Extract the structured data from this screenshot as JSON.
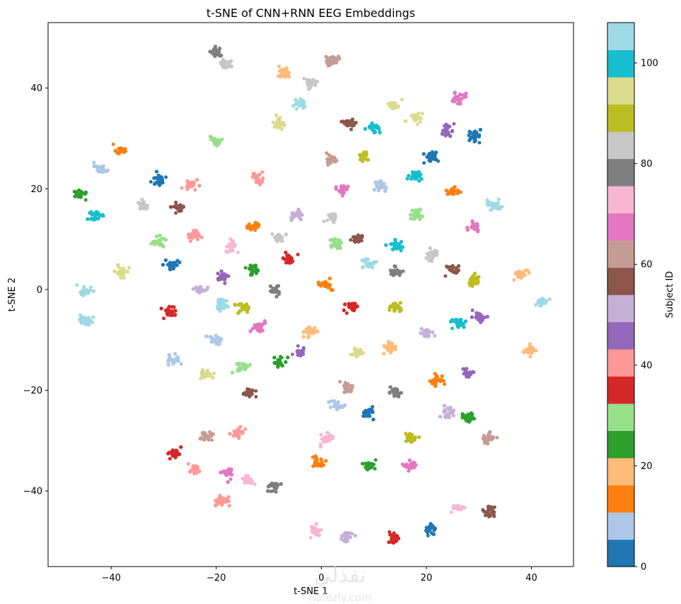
{
  "chart_data": {
    "type": "scatter",
    "title": "t-SNE of CNN+RNN EEG Embeddings",
    "xlabel": "t-SNE 1",
    "ylabel": "t-SNE 2",
    "xlim": [
      -52,
      48
    ],
    "ylim": [
      -55,
      53
    ],
    "x_ticks": [
      -40,
      -20,
      0,
      20,
      40
    ],
    "y_ticks": [
      -40,
      -20,
      0,
      20,
      40
    ],
    "grid": false,
    "colorbar": {
      "label": "Subject ID",
      "colormap": "tab20",
      "range": [
        0,
        108
      ],
      "ticks": [
        0,
        20,
        40,
        60,
        80,
        100
      ],
      "colors": [
        "#1f77b4",
        "#aec7e8",
        "#ff7f0e",
        "#ffbb78",
        "#2ca02c",
        "#98df8a",
        "#d62728",
        "#ff9896",
        "#9467bd",
        "#c5b0d5",
        "#8c564b",
        "#c49c94",
        "#e377c2",
        "#f7b6d2",
        "#7f7f7f",
        "#c7c7c7",
        "#bcbd22",
        "#dbdb8d",
        "#17becf",
        "#9edae5"
      ]
    },
    "clusters": [
      {
        "x": -20,
        "y": 47,
        "color": "#7f7f7f"
      },
      {
        "x": -18,
        "y": 45,
        "color": "#c7c7c7"
      },
      {
        "x": -7,
        "y": 43,
        "color": "#ffbb78"
      },
      {
        "x": -2,
        "y": 41,
        "color": "#c7c7c7"
      },
      {
        "x": 2,
        "y": 45.5,
        "color": "#c49c94"
      },
      {
        "x": -4,
        "y": 37,
        "color": "#9edae5"
      },
      {
        "x": 14,
        "y": 36.5,
        "color": "#dbdb8d"
      },
      {
        "x": 18,
        "y": 34,
        "color": "#dbdb8d"
      },
      {
        "x": 26,
        "y": 38,
        "color": "#e377c2"
      },
      {
        "x": 5,
        "y": 33,
        "color": "#8c564b"
      },
      {
        "x": 10,
        "y": 32,
        "color": "#17becf"
      },
      {
        "x": -8,
        "y": 33,
        "color": "#dbdb8d"
      },
      {
        "x": 24,
        "y": 31.5,
        "color": "#9467bd"
      },
      {
        "x": 29,
        "y": 30.5,
        "color": "#1f77b4"
      },
      {
        "x": -20,
        "y": 29.5,
        "color": "#98df8a"
      },
      {
        "x": -38,
        "y": 27.5,
        "color": "#ff7f0e"
      },
      {
        "x": 8,
        "y": 26.5,
        "color": "#bcbd22"
      },
      {
        "x": 2,
        "y": 26,
        "color": "#c49c94"
      },
      {
        "x": 21,
        "y": 26.5,
        "color": "#1f77b4"
      },
      {
        "x": -42,
        "y": 24,
        "color": "#aec7e8"
      },
      {
        "x": 18,
        "y": 22.5,
        "color": "#17becf"
      },
      {
        "x": -12,
        "y": 22,
        "color": "#ff9896"
      },
      {
        "x": -31,
        "y": 21.5,
        "color": "#1f77b4"
      },
      {
        "x": -25,
        "y": 21,
        "color": "#ff9896"
      },
      {
        "x": 11,
        "y": 20.5,
        "color": "#aec7e8"
      },
      {
        "x": 4,
        "y": 20,
        "color": "#e377c2"
      },
      {
        "x": 25,
        "y": 19.5,
        "color": "#ff7f0e"
      },
      {
        "x": -46,
        "y": 19,
        "color": "#2ca02c"
      },
      {
        "x": -34,
        "y": 16.5,
        "color": "#c7c7c7"
      },
      {
        "x": -27,
        "y": 16.5,
        "color": "#8c564b"
      },
      {
        "x": 33,
        "y": 16.5,
        "color": "#9edae5"
      },
      {
        "x": -43,
        "y": 14.5,
        "color": "#17becf"
      },
      {
        "x": 2,
        "y": 14.5,
        "color": "#c7c7c7"
      },
      {
        "x": -5,
        "y": 15,
        "color": "#c5b0d5"
      },
      {
        "x": 18,
        "y": 15,
        "color": "#98df8a"
      },
      {
        "x": -13,
        "y": 12.5,
        "color": "#ff7f0e"
      },
      {
        "x": 29,
        "y": 12.5,
        "color": "#e377c2"
      },
      {
        "x": -24,
        "y": 11,
        "color": "#ff9896"
      },
      {
        "x": -8,
        "y": 10.5,
        "color": "#c7c7c7"
      },
      {
        "x": 7,
        "y": 10,
        "color": "#8c564b"
      },
      {
        "x": -31,
        "y": 9.5,
        "color": "#98df8a"
      },
      {
        "x": 3,
        "y": 9,
        "color": "#98df8a"
      },
      {
        "x": 14,
        "y": 9,
        "color": "#17becf"
      },
      {
        "x": -17,
        "y": 8.5,
        "color": "#f7b6d2"
      },
      {
        "x": 21,
        "y": 7,
        "color": "#c7c7c7"
      },
      {
        "x": -6,
        "y": 6,
        "color": "#d62728"
      },
      {
        "x": -28,
        "y": 5,
        "color": "#1f77b4"
      },
      {
        "x": 9,
        "y": 5,
        "color": "#9edae5"
      },
      {
        "x": -13,
        "y": 4,
        "color": "#2ca02c"
      },
      {
        "x": -38,
        "y": 3.5,
        "color": "#dbdb8d"
      },
      {
        "x": 14,
        "y": 3.5,
        "color": "#7f7f7f"
      },
      {
        "x": 25,
        "y": 4,
        "color": "#8c564b"
      },
      {
        "x": 38,
        "y": 3,
        "color": "#ffbb78"
      },
      {
        "x": -19,
        "y": 2.5,
        "color": "#9467bd"
      },
      {
        "x": 29,
        "y": 2,
        "color": "#bcbd22"
      },
      {
        "x": 1,
        "y": 1,
        "color": "#ff7f0e"
      },
      {
        "x": -9,
        "y": 0,
        "color": "#7f7f7f"
      },
      {
        "x": -45,
        "y": -0.5,
        "color": "#9edae5"
      },
      {
        "x": -23,
        "y": 0,
        "color": "#c5b0d5"
      },
      {
        "x": -15,
        "y": -3.5,
        "color": "#bcbd22"
      },
      {
        "x": -19,
        "y": -3,
        "color": "#9edae5"
      },
      {
        "x": 6,
        "y": -3.5,
        "color": "#d62728"
      },
      {
        "x": 14,
        "y": -3.5,
        "color": "#bcbd22"
      },
      {
        "x": 42,
        "y": -2.5,
        "color": "#9edae5"
      },
      {
        "x": -29,
        "y": -4.5,
        "color": "#d62728"
      },
      {
        "x": 30,
        "y": -5.5,
        "color": "#9467bd"
      },
      {
        "x": -45,
        "y": -6,
        "color": "#9edae5"
      },
      {
        "x": 26,
        "y": -6.5,
        "color": "#17becf"
      },
      {
        "x": -12,
        "y": -7.5,
        "color": "#e377c2"
      },
      {
        "x": 20,
        "y": -8.5,
        "color": "#c5b0d5"
      },
      {
        "x": -2,
        "y": -8.5,
        "color": "#ffbb78"
      },
      {
        "x": -20,
        "y": -10,
        "color": "#aec7e8"
      },
      {
        "x": 13,
        "y": -11.5,
        "color": "#ffbb78"
      },
      {
        "x": 40,
        "y": -12,
        "color": "#ffbb78"
      },
      {
        "x": -4,
        "y": -12.5,
        "color": "#9467bd"
      },
      {
        "x": 7,
        "y": -12.5,
        "color": "#dbdb8d"
      },
      {
        "x": -28,
        "y": -14,
        "color": "#aec7e8"
      },
      {
        "x": -8,
        "y": -14.5,
        "color": "#2ca02c"
      },
      {
        "x": -15,
        "y": -15.5,
        "color": "#98df8a"
      },
      {
        "x": 28,
        "y": -16.5,
        "color": "#9467bd"
      },
      {
        "x": -22,
        "y": -17,
        "color": "#dbdb8d"
      },
      {
        "x": 22,
        "y": -18,
        "color": "#ff7f0e"
      },
      {
        "x": 5,
        "y": -19.5,
        "color": "#c49c94"
      },
      {
        "x": -14,
        "y": -20.5,
        "color": "#8c564b"
      },
      {
        "x": 14,
        "y": -20.5,
        "color": "#7f7f7f"
      },
      {
        "x": 3,
        "y": -23,
        "color": "#aec7e8"
      },
      {
        "x": 24,
        "y": -24.5,
        "color": "#c5b0d5"
      },
      {
        "x": 9,
        "y": -24.5,
        "color": "#1f77b4"
      },
      {
        "x": 28,
        "y": -25.5,
        "color": "#2ca02c"
      },
      {
        "x": -16,
        "y": -28.5,
        "color": "#ff9896"
      },
      {
        "x": -22,
        "y": -29,
        "color": "#c49c94"
      },
      {
        "x": 1,
        "y": -29.5,
        "color": "#f7b6d2"
      },
      {
        "x": 32,
        "y": -29.5,
        "color": "#c49c94"
      },
      {
        "x": 17,
        "y": -29.5,
        "color": "#bcbd22"
      },
      {
        "x": -28,
        "y": -32.5,
        "color": "#d62728"
      },
      {
        "x": -1,
        "y": -34.5,
        "color": "#ff7f0e"
      },
      {
        "x": 9,
        "y": -35,
        "color": "#2ca02c"
      },
      {
        "x": 17,
        "y": -35,
        "color": "#e377c2"
      },
      {
        "x": -24,
        "y": -35.5,
        "color": "#ff9896"
      },
      {
        "x": -18,
        "y": -36.5,
        "color": "#e377c2"
      },
      {
        "x": -14,
        "y": -37.5,
        "color": "#f7b6d2"
      },
      {
        "x": -9,
        "y": -39,
        "color": "#7f7f7f"
      },
      {
        "x": -19,
        "y": -42,
        "color": "#ff9896"
      },
      {
        "x": 26,
        "y": -43.5,
        "color": "#f7b6d2"
      },
      {
        "x": 32,
        "y": -44,
        "color": "#8c564b"
      },
      {
        "x": 21,
        "y": -47.5,
        "color": "#1f77b4"
      },
      {
        "x": -1,
        "y": -48,
        "color": "#f7b6d2"
      },
      {
        "x": 5,
        "y": -49,
        "color": "#c5b0d5"
      },
      {
        "x": 14,
        "y": -49.5,
        "color": "#d62728"
      }
    ]
  },
  "watermark": {
    "arabic": "نفذلي",
    "latin": "nafezly.com"
  }
}
